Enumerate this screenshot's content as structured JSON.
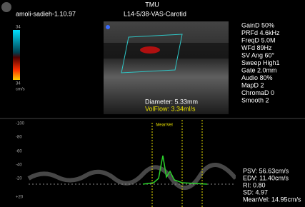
{
  "header": {
    "site": "TMU",
    "patient": "amoli-sadieh-1.10.97",
    "probe": "L14-5/38-VAS-Carotid"
  },
  "color_scale": {
    "top": "34",
    "bottom": "34",
    "unit": "cm/s"
  },
  "parameters": [
    "GainD 50%",
    "PRFd 4.6kHz",
    "FreqD 5.0M",
    "WFd 89Hz",
    "SV Ang 60°",
    "Sweep High1",
    "Gate 2.0mm",
    "Audio 80%",
    "MapD 2",
    "ChromaD 0",
    "Smooth 2"
  ],
  "measurements": {
    "diameter": "Diameter: 5.33mm",
    "volflow": "VolFlow: 3.34ml/s"
  },
  "spectral": {
    "scale": [
      "-100",
      "-80",
      "-60",
      "-40",
      "-20",
      "+20"
    ],
    "cursor": "MeanVel"
  },
  "results": [
    "PSV: 56.63cm/s",
    "EDV: 11.40cm/s",
    "RI: 0.80",
    "SD: 4.97",
    "MeanVel: 14.95cm/s"
  ]
}
